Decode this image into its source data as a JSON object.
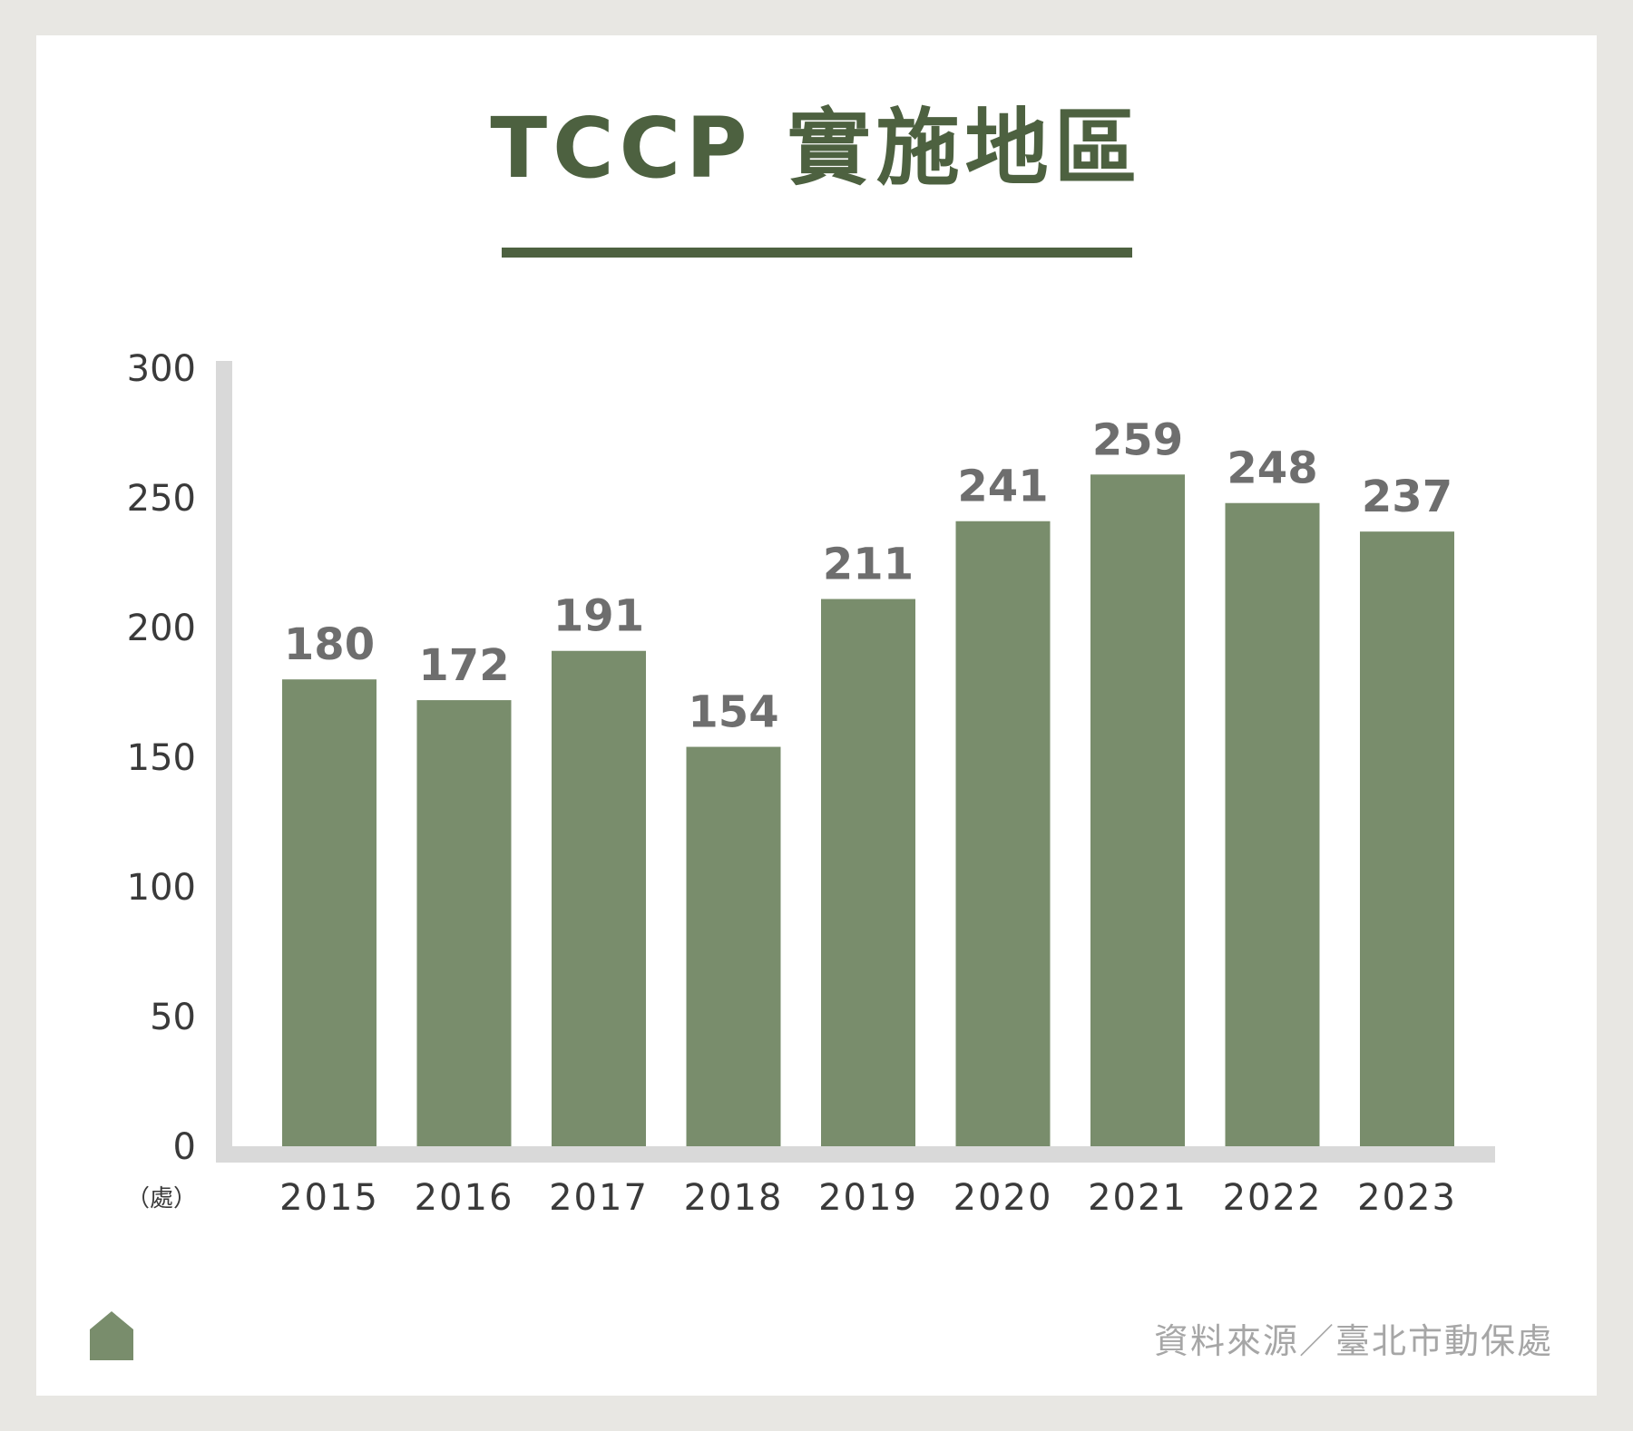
{
  "title": "TCCP 實施地區",
  "source": "資料來源／臺北市動保處",
  "icon": "house-icon",
  "colors": {
    "background": "#e8e7e3",
    "card": "#ffffff",
    "bar": "#798d6c",
    "title": "#4d6140",
    "axis": "#d9d9d9",
    "value_label": "#6e6e6e",
    "source": "#a6a6a6"
  },
  "chart_data": {
    "type": "bar",
    "title": "TCCP 實施地區",
    "categories": [
      "2015",
      "2016",
      "2017",
      "2018",
      "2019",
      "2020",
      "2021",
      "2022",
      "2023"
    ],
    "values": [
      180,
      172,
      191,
      154,
      211,
      241,
      259,
      248,
      237
    ],
    "value_labels": [
      "180",
      "172",
      "191",
      "154",
      "211",
      "241",
      "259",
      "248",
      "237"
    ],
    "ylim": [
      0,
      300
    ],
    "yticks": [
      "0",
      "50",
      "100",
      "150",
      "200",
      "250",
      "300"
    ],
    "yunit": "（處）",
    "grid": false,
    "legend": "none"
  }
}
